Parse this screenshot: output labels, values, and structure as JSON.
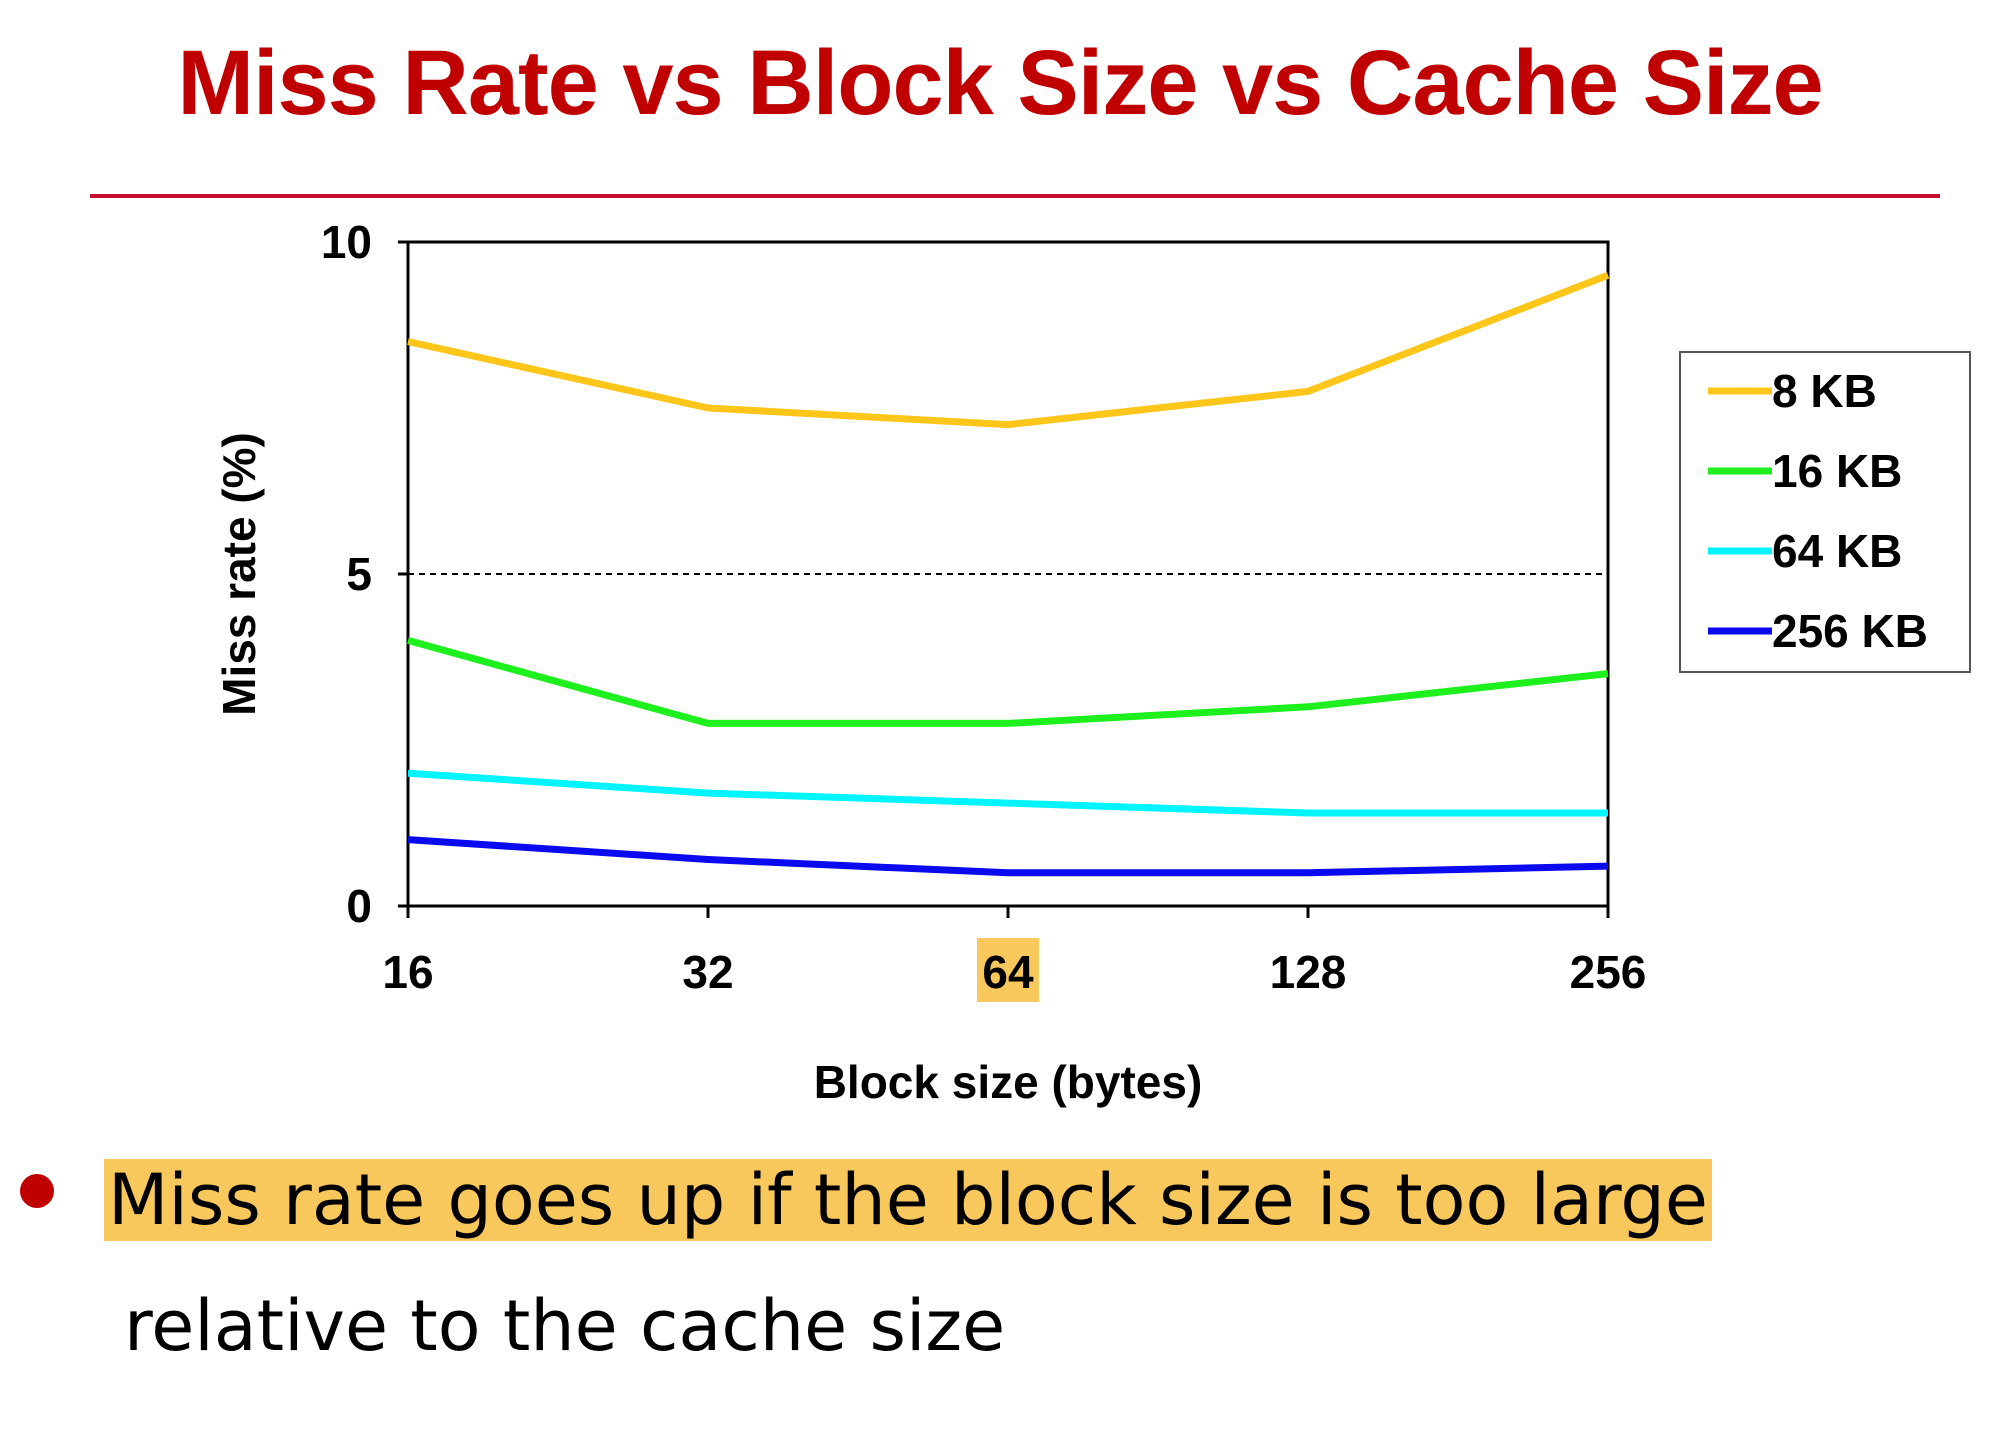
{
  "slide": {
    "title": "Miss Rate vs Block Size vs Cache Size",
    "bullet_highlighted": "Miss rate goes up if the block size is too large",
    "bullet_rest": "relative to the cache size"
  },
  "colors": {
    "title": "#c00000",
    "highlight": "#f9c85c",
    "series": [
      "#ffc61a",
      "#1ef01e",
      "#00f5ff",
      "#0a0af0"
    ]
  },
  "chart_data": {
    "type": "line",
    "title": "",
    "xlabel": "Block size (bytes)",
    "ylabel": "Miss rate (%)",
    "categories": [
      "16",
      "32",
      "64",
      "128",
      "256"
    ],
    "highlighted_category": "64",
    "ylim": [
      0,
      10
    ],
    "yticks": [
      "0",
      "5",
      "10"
    ],
    "gridline_at": 5,
    "legend_position": "right",
    "series": [
      {
        "name": "8 KB",
        "values": [
          8.5,
          7.5,
          7.25,
          7.75,
          9.5
        ]
      },
      {
        "name": "16 KB",
        "values": [
          4.0,
          2.75,
          2.75,
          3.0,
          3.5
        ]
      },
      {
        "name": "64 KB",
        "values": [
          2.0,
          1.7,
          1.55,
          1.4,
          1.4
        ]
      },
      {
        "name": "256 KB",
        "values": [
          1.0,
          0.7,
          0.5,
          0.5,
          0.6
        ]
      }
    ]
  }
}
